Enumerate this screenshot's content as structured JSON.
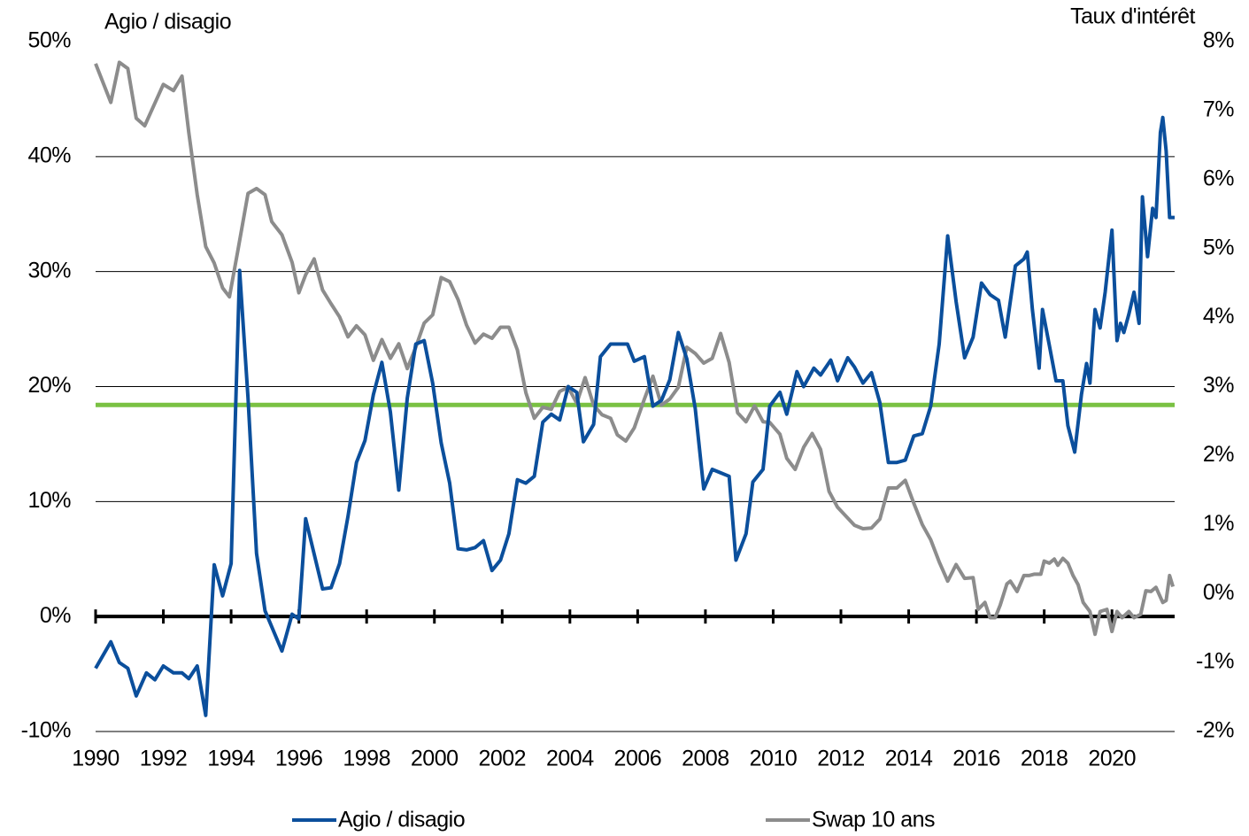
{
  "chart_data": {
    "type": "line",
    "y_title": "Agio / disagio",
    "y2_title": "Taux d'intérêt",
    "xlim": [
      1990,
      2021.85
    ],
    "xticks": [
      1990,
      1992,
      1994,
      1996,
      1998,
      2000,
      2002,
      2004,
      2006,
      2008,
      2010,
      2012,
      2014,
      2016,
      2018,
      2020
    ],
    "ylim": [
      -10,
      50
    ],
    "yticks": [
      {
        "value": -10,
        "label": "-10%"
      },
      {
        "value": 0,
        "label": "0%"
      },
      {
        "value": 10,
        "label": "10%"
      },
      {
        "value": 20,
        "label": "20%"
      },
      {
        "value": 30,
        "label": "30%"
      },
      {
        "value": 40,
        "label": "40%"
      },
      {
        "value": 50,
        "label": "50%"
      }
    ],
    "y2lim": [
      -2,
      8
    ],
    "y2ticks": [
      {
        "value": -2,
        "label": "-2%"
      },
      {
        "value": -1,
        "label": "-1%"
      },
      {
        "value": 0,
        "label": "0%"
      },
      {
        "value": 1,
        "label": "1%"
      },
      {
        "value": 2,
        "label": "2%"
      },
      {
        "value": 3,
        "label": "3%"
      },
      {
        "value": 4,
        "label": "4%"
      },
      {
        "value": 5,
        "label": "5%"
      },
      {
        "value": 6,
        "label": "6%"
      },
      {
        "value": 7,
        "label": "7%"
      },
      {
        "value": 8,
        "label": "8%"
      }
    ],
    "grid": true,
    "reference_line": {
      "value": 18.4,
      "color": "#7ac143"
    },
    "series": [
      {
        "name": "Agio / disagio",
        "color": "#0b4f9c",
        "x": [
          1990.0,
          1990.45,
          1990.7,
          1990.95,
          1991.2,
          1991.5,
          1991.75,
          1992.0,
          1992.3,
          1992.55,
          1992.75,
          1993.0,
          1993.25,
          1993.5,
          1993.75,
          1994.0,
          1994.25,
          1994.5,
          1994.75,
          1995.0,
          1995.5,
          1995.8,
          1996.0,
          1996.2,
          1996.7,
          1996.95,
          1997.2,
          1997.45,
          1997.7,
          1997.95,
          1998.2,
          1998.45,
          1998.7,
          1998.95,
          1999.2,
          1999.45,
          1999.7,
          1999.95,
          2000.2,
          2000.45,
          2000.7,
          2000.95,
          2001.2,
          2001.45,
          2001.7,
          2001.95,
          2002.2,
          2002.45,
          2002.7,
          2002.95,
          2003.2,
          2003.45,
          2003.7,
          2003.95,
          2004.2,
          2004.4,
          2004.7,
          2004.9,
          2005.2,
          2005.4,
          2005.7,
          2005.9,
          2006.2,
          2006.45,
          2006.7,
          2006.95,
          2007.2,
          2007.45,
          2007.7,
          2007.95,
          2008.2,
          2008.45,
          2008.7,
          2008.9,
          2009.2,
          2009.4,
          2009.7,
          2009.9,
          2010.2,
          2010.4,
          2010.7,
          2010.9,
          2011.2,
          2011.4,
          2011.7,
          2011.9,
          2012.2,
          2012.4,
          2012.65,
          2012.9,
          2013.15,
          2013.4,
          2013.65,
          2013.9,
          2014.15,
          2014.4,
          2014.65,
          2014.9,
          2015.15,
          2015.4,
          2015.65,
          2015.9,
          2016.15,
          2016.4,
          2016.65,
          2016.85,
          2017.15,
          2017.4,
          2017.5,
          2017.65,
          2017.85,
          2017.95,
          2018.15,
          2018.35,
          2018.55,
          2018.7,
          2018.9,
          2019.1,
          2019.25,
          2019.35,
          2019.5,
          2019.65,
          2019.8,
          2020.0,
          2020.15,
          2020.25,
          2020.35,
          2020.5,
          2020.65,
          2020.8,
          2020.9,
          2021.05,
          2021.2,
          2021.3,
          2021.43,
          2021.5,
          2021.6,
          2021.7,
          2021.85
        ],
        "values": [
          -4.5,
          -2.2,
          -4.0,
          -4.5,
          -6.9,
          -4.9,
          -5.5,
          -4.3,
          -4.9,
          -4.9,
          -5.4,
          -4.3,
          -8.6,
          4.5,
          1.8,
          4.6,
          30.1,
          19.0,
          5.5,
          0.5,
          -3.0,
          0.2,
          -0.2,
          8.5,
          2.4,
          2.5,
          4.6,
          8.7,
          13.4,
          15.3,
          19.3,
          22.1,
          17.8,
          11.0,
          19.0,
          23.7,
          24.0,
          20.3,
          15.1,
          11.6,
          5.9,
          5.8,
          6.0,
          6.6,
          4.0,
          4.9,
          7.2,
          11.9,
          11.6,
          12.2,
          16.9,
          17.6,
          17.1,
          20.0,
          19.5,
          15.2,
          16.7,
          22.6,
          23.7,
          23.7,
          23.7,
          22.2,
          22.6,
          18.3,
          18.8,
          20.6,
          24.7,
          22.4,
          18.1,
          11.1,
          12.8,
          12.5,
          12.2,
          4.9,
          7.2,
          11.7,
          12.8,
          18.3,
          19.5,
          17.6,
          21.3,
          20.0,
          21.6,
          21.0,
          22.3,
          20.5,
          22.5,
          21.7,
          20.3,
          21.2,
          18.6,
          13.4,
          13.4,
          13.6,
          15.7,
          15.9,
          18.3,
          23.7,
          33.1,
          27.4,
          22.5,
          24.3,
          29.0,
          28.0,
          27.5,
          24.3,
          30.5,
          31.1,
          31.7,
          26.7,
          21.6,
          26.7,
          23.6,
          20.5,
          20.5,
          16.6,
          14.3,
          19.3,
          22.0,
          20.3,
          26.7,
          25.1,
          28.2,
          33.6,
          24.0,
          25.5,
          24.7,
          26.3,
          28.2,
          25.5,
          36.5,
          31.3,
          35.5,
          34.7,
          42.1,
          43.4,
          40.5,
          34.7,
          34.7
        ]
      },
      {
        "name": "Swap 10 ans",
        "color": "#8c8c8c",
        "axis": "y2",
        "x": [
          1990.0,
          1990.45,
          1990.7,
          1990.95,
          1991.2,
          1991.45,
          1992.0,
          1992.3,
          1992.55,
          1992.75,
          1993.0,
          1993.25,
          1993.5,
          1993.75,
          1993.95,
          1994.2,
          1994.5,
          1994.75,
          1995.0,
          1995.2,
          1995.5,
          1995.8,
          1996.0,
          1996.2,
          1996.45,
          1996.7,
          1996.95,
          1997.2,
          1997.45,
          1997.7,
          1997.95,
          1998.2,
          1998.45,
          1998.7,
          1998.95,
          1999.2,
          1999.45,
          1999.7,
          1999.95,
          2000.2,
          2000.45,
          2000.7,
          2000.95,
          2001.2,
          2001.45,
          2001.7,
          2001.95,
          2002.2,
          2002.45,
          2002.7,
          2002.95,
          2003.2,
          2003.45,
          2003.7,
          2003.95,
          2004.2,
          2004.45,
          2004.7,
          2004.95,
          2005.2,
          2005.4,
          2005.65,
          2005.9,
          2006.2,
          2006.45,
          2006.7,
          2006.95,
          2007.2,
          2007.45,
          2007.7,
          2007.95,
          2008.2,
          2008.45,
          2008.7,
          2008.95,
          2009.2,
          2009.45,
          2009.7,
          2009.9,
          2010.2,
          2010.4,
          2010.65,
          2010.9,
          2011.15,
          2011.4,
          2011.65,
          2011.9,
          2012.15,
          2012.4,
          2012.65,
          2012.9,
          2013.15,
          2013.4,
          2013.65,
          2013.9,
          2014.15,
          2014.4,
          2014.65,
          2014.9,
          2015.15,
          2015.4,
          2015.65,
          2015.9,
          2016.05,
          2016.25,
          2016.4,
          2016.55,
          2016.7,
          2016.9,
          2017.0,
          2017.2,
          2017.4,
          2017.55,
          2017.7,
          2017.9,
          2018.0,
          2018.15,
          2018.3,
          2018.4,
          2018.55,
          2018.7,
          2018.85,
          2019.0,
          2019.15,
          2019.35,
          2019.5,
          2019.65,
          2019.85,
          2020.0,
          2020.15,
          2020.3,
          2020.5,
          2020.65,
          2020.85,
          2021.0,
          2021.15,
          2021.3,
          2021.5,
          2021.6,
          2021.7,
          2021.8
        ],
        "values": [
          7.68,
          7.12,
          7.7,
          7.61,
          6.89,
          6.78,
          7.38,
          7.29,
          7.5,
          6.68,
          5.78,
          5.03,
          4.79,
          4.43,
          4.3,
          4.97,
          5.8,
          5.87,
          5.78,
          5.39,
          5.2,
          4.8,
          4.36,
          4.62,
          4.85,
          4.4,
          4.2,
          4.01,
          3.72,
          3.88,
          3.75,
          3.38,
          3.68,
          3.41,
          3.62,
          3.26,
          3.57,
          3.92,
          4.04,
          4.58,
          4.52,
          4.26,
          3.89,
          3.63,
          3.76,
          3.7,
          3.86,
          3.86,
          3.53,
          2.91,
          2.54,
          2.7,
          2.67,
          2.93,
          2.99,
          2.76,
          3.13,
          2.73,
          2.59,
          2.54,
          2.3,
          2.21,
          2.4,
          2.82,
          3.15,
          2.73,
          2.82,
          2.99,
          3.57,
          3.48,
          3.34,
          3.41,
          3.77,
          3.35,
          2.62,
          2.49,
          2.72,
          2.49,
          2.48,
          2.31,
          1.96,
          1.8,
          2.12,
          2.32,
          2.09,
          1.48,
          1.25,
          1.12,
          0.99,
          0.94,
          0.95,
          1.08,
          1.53,
          1.53,
          1.64,
          1.31,
          1.0,
          0.78,
          0.46,
          0.18,
          0.42,
          0.22,
          0.23,
          -0.23,
          -0.13,
          -0.35,
          -0.35,
          -0.17,
          0.14,
          0.18,
          0.03,
          0.26,
          0.26,
          0.28,
          0.28,
          0.47,
          0.44,
          0.5,
          0.41,
          0.51,
          0.44,
          0.26,
          0.13,
          -0.13,
          -0.26,
          -0.59,
          -0.26,
          -0.23,
          -0.55,
          -0.26,
          -0.35,
          -0.26,
          -0.35,
          -0.3,
          0.04,
          0.03,
          0.09,
          -0.13,
          -0.1,
          0.26,
          0.1
        ]
      }
    ]
  }
}
